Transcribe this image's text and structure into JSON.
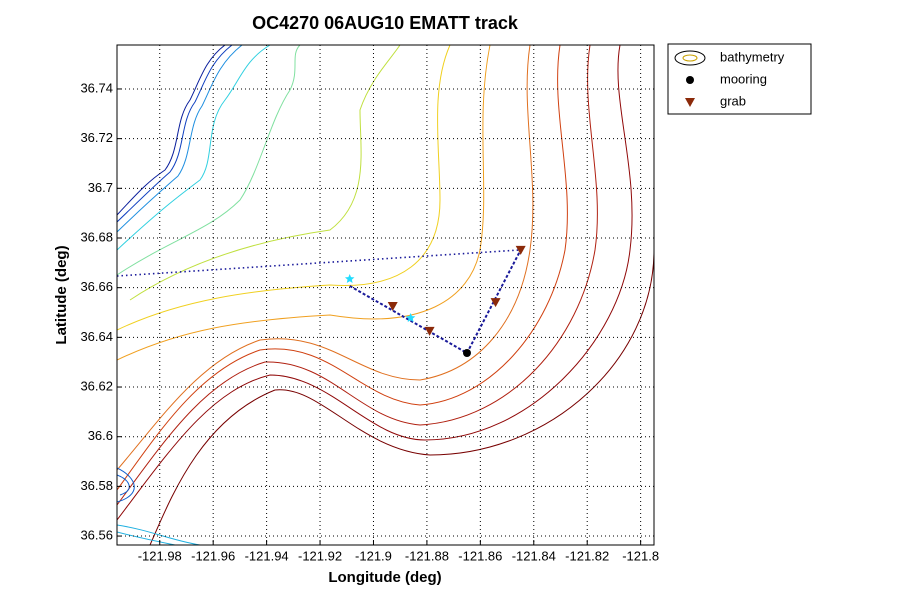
{
  "chart_data": {
    "type": "scatter",
    "title": "OC4270 06AUG10 EMATT track",
    "x_label": "Longitude (deg)",
    "y_label": "Latitude (deg)",
    "xlim": [
      -121.996,
      -121.795
    ],
    "ylim": [
      36.5564,
      36.7577
    ],
    "xticks": [
      -121.98,
      -121.96,
      -121.94,
      -121.92,
      -121.9,
      -121.88,
      -121.86,
      -121.84,
      -121.82,
      -121.8
    ],
    "yticks": [
      36.56,
      36.58,
      36.6,
      36.62,
      36.64,
      36.66,
      36.68,
      36.7,
      36.72,
      36.74
    ],
    "grid": true,
    "legend": "outside-upper-right",
    "series": [
      {
        "name": "bathymetry",
        "marker": "contour"
      },
      {
        "name": "mooring",
        "marker": "circle",
        "color": "#000000",
        "x": [
          -121.865
        ],
        "y": [
          36.6337
        ]
      },
      {
        "name": "grab",
        "marker": "triangle",
        "color": "#8b2a0a",
        "x": [
          -121.8928,
          -121.879,
          -121.8543,
          -121.8449
        ],
        "y": [
          36.6526,
          36.6426,
          36.6542,
          36.6752
        ]
      },
      {
        "marker": "star",
        "color": "#22ddff",
        "x": [
          -121.9089,
          -121.8861
        ],
        "y": [
          36.6635,
          36.6478
        ]
      },
      {
        "marker": "dotted-line",
        "color": "#1a1a9a",
        "x": [
          -121.996,
          -121.8449
        ],
        "y": [
          36.6647,
          36.6752
        ]
      },
      {
        "marker": "dashed-line",
        "color": "#1a1a9a",
        "x": [
          -121.9089,
          -121.865,
          -121.8449
        ],
        "y": [
          36.6607,
          36.6337,
          36.6752
        ]
      }
    ]
  }
}
